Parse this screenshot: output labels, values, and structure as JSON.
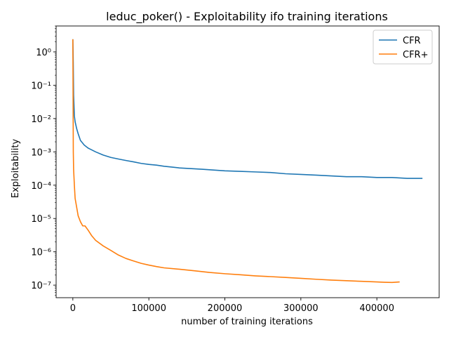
{
  "chart_data": {
    "type": "line",
    "title": "leduc_poker() - Exploitability ifo training iterations",
    "xlabel": "number of training iterations",
    "ylabel": "Exploitability",
    "xlim": [
      -22000,
      482000
    ],
    "ylim": [
      4.2e-08,
      6.0
    ],
    "yscale": "log",
    "grid": false,
    "legend_position": "top-right",
    "x_ticks": [
      0,
      100000,
      200000,
      300000,
      400000
    ],
    "x_tick_labels": [
      "0",
      "100000",
      "200000",
      "300000",
      "400000"
    ],
    "y_ticks": [
      1e-07,
      1e-06,
      1e-05,
      0.0001,
      0.001,
      0.01,
      0.1,
      1
    ],
    "y_tick_labels": [
      "10⁻⁷",
      "10⁻⁶",
      "10⁻⁵",
      "10⁻⁴",
      "10⁻³",
      "10⁻²",
      "10⁻¹",
      "10⁰"
    ],
    "series": [
      {
        "name": "CFR",
        "color": "#1f77b4",
        "points": [
          [
            0,
            2.4
          ],
          [
            500,
            0.5
          ],
          [
            1000,
            0.05
          ],
          [
            2000,
            0.012
          ],
          [
            3000,
            0.008
          ],
          [
            5000,
            0.005
          ],
          [
            7000,
            0.0035
          ],
          [
            10000,
            0.0022
          ],
          [
            15000,
            0.0016
          ],
          [
            20000,
            0.0013
          ],
          [
            30000,
            0.001
          ],
          [
            40000,
            0.0008
          ],
          [
            50000,
            0.00068
          ],
          [
            60000,
            0.00061
          ],
          [
            70000,
            0.00055
          ],
          [
            80000,
            0.0005
          ],
          [
            90000,
            0.00045
          ],
          [
            100000,
            0.00042
          ],
          [
            110000,
            0.0004
          ],
          [
            120000,
            0.00037
          ],
          [
            130000,
            0.00035
          ],
          [
            140000,
            0.00033
          ],
          [
            150000,
            0.00032
          ],
          [
            160000,
            0.00031
          ],
          [
            170000,
            0.0003
          ],
          [
            180000,
            0.00029
          ],
          [
            190000,
            0.00028
          ],
          [
            200000,
            0.00027
          ],
          [
            220000,
            0.00026
          ],
          [
            240000,
            0.00025
          ],
          [
            260000,
            0.00024
          ],
          [
            280000,
            0.00022
          ],
          [
            300000,
            0.00021
          ],
          [
            320000,
            0.0002
          ],
          [
            340000,
            0.00019
          ],
          [
            360000,
            0.00018
          ],
          [
            380000,
            0.00018
          ],
          [
            400000,
            0.00017
          ],
          [
            420000,
            0.00017
          ],
          [
            440000,
            0.00016
          ],
          [
            460000,
            0.00016
          ]
        ]
      },
      {
        "name": "CFR+",
        "color": "#ff7f0e",
        "points": [
          [
            0,
            2.4
          ],
          [
            300,
            0.05
          ],
          [
            600,
            0.001
          ],
          [
            1000,
            0.0003
          ],
          [
            2000,
            0.0001
          ],
          [
            3000,
            4e-05
          ],
          [
            5000,
            2.2e-05
          ],
          [
            7000,
            1.2e-05
          ],
          [
            10000,
            8e-06
          ],
          [
            13000,
            6e-06
          ],
          [
            16000,
            6e-06
          ],
          [
            20000,
            4.5e-06
          ],
          [
            25000,
            3e-06
          ],
          [
            30000,
            2.2e-06
          ],
          [
            40000,
            1.5e-06
          ],
          [
            50000,
            1.1e-06
          ],
          [
            60000,
            8e-07
          ],
          [
            70000,
            6.3e-07
          ],
          [
            80000,
            5.3e-07
          ],
          [
            90000,
            4.5e-07
          ],
          [
            100000,
            4e-07
          ],
          [
            110000,
            3.6e-07
          ],
          [
            120000,
            3.3e-07
          ],
          [
            140000,
            3e-07
          ],
          [
            160000,
            2.7e-07
          ],
          [
            180000,
            2.4e-07
          ],
          [
            200000,
            2.2e-07
          ],
          [
            220000,
            2.05e-07
          ],
          [
            240000,
            1.9e-07
          ],
          [
            260000,
            1.8e-07
          ],
          [
            280000,
            1.7e-07
          ],
          [
            300000,
            1.6e-07
          ],
          [
            320000,
            1.5e-07
          ],
          [
            340000,
            1.42e-07
          ],
          [
            360000,
            1.36e-07
          ],
          [
            380000,
            1.3e-07
          ],
          [
            400000,
            1.25e-07
          ],
          [
            410000,
            1.22e-07
          ],
          [
            420000,
            1.2e-07
          ],
          [
            430000,
            1.25e-07
          ]
        ]
      }
    ]
  }
}
